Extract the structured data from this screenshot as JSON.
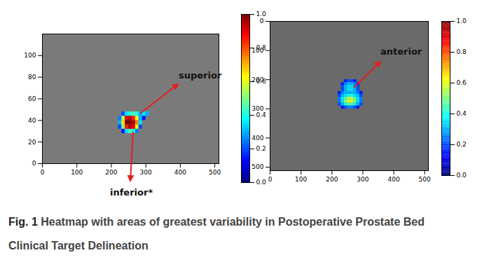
{
  "chart_data": [
    {
      "type": "heatmap",
      "xlim": [
        0,
        512
      ],
      "xticks": [
        0,
        100,
        200,
        300,
        400,
        500
      ],
      "ylim": [
        0,
        120
      ],
      "yticks": [
        0,
        20,
        40,
        60,
        80,
        100
      ],
      "annotations": [
        "superior",
        "inferior*"
      ],
      "cells": {
        "x_edges": [
          220,
          230,
          240,
          250,
          260,
          270,
          280,
          290,
          300,
          310
        ],
        "y_edges": [
          28,
          32,
          36,
          40,
          44,
          48
        ],
        "values": [
          [
            null,
            0.15,
            0.35,
            0.45,
            0.4,
            0.25,
            null,
            null,
            null
          ],
          [
            0.2,
            0.5,
            0.85,
            0.95,
            0.9,
            0.6,
            0.2,
            null,
            null
          ],
          [
            0.3,
            0.65,
            1.0,
            1.0,
            0.95,
            0.75,
            0.35,
            null,
            null
          ],
          [
            0.25,
            0.55,
            0.9,
            0.95,
            0.85,
            0.6,
            0.3,
            0.15,
            null
          ],
          [
            null,
            0.2,
            0.35,
            0.4,
            0.45,
            0.4,
            0.3,
            0.35,
            0.3
          ]
        ]
      },
      "colorbar": {
        "lim": [
          0,
          1
        ],
        "ticks": [
          {
            "value": 0,
            "label": "0.0"
          },
          {
            "value": 0.2,
            "label": "0.2"
          },
          {
            "value": 0.4,
            "label": "0.4"
          },
          {
            "value": 0.6,
            "label": "0.6"
          },
          {
            "value": 0.8,
            "label": "0.8"
          },
          {
            "value": 1,
            "label": "1.0"
          }
        ]
      }
    },
    {
      "type": "heatmap",
      "xlim": [
        0,
        512
      ],
      "xticks": [
        0,
        100,
        200,
        300,
        400,
        500
      ],
      "ylim": [
        512,
        0
      ],
      "yticks": [
        0,
        100,
        200,
        300,
        400,
        500
      ],
      "annotations": [
        "anterior"
      ],
      "cells": {
        "x_edges": [
          220,
          230,
          240,
          250,
          260,
          270,
          280,
          290,
          300
        ],
        "y_edges": [
          200,
          210,
          220,
          230,
          240,
          250,
          260,
          270,
          280,
          290,
          300
        ],
        "values": [
          [
            null,
            null,
            0.15,
            0.2,
            0.2,
            0.15,
            null,
            null
          ],
          [
            null,
            0.15,
            0.25,
            0.3,
            0.3,
            0.25,
            0.15,
            null
          ],
          [
            null,
            0.2,
            0.3,
            0.35,
            0.35,
            0.3,
            0.2,
            null
          ],
          [
            null,
            0.2,
            0.3,
            0.35,
            0.35,
            0.3,
            0.2,
            null
          ],
          [
            0.15,
            0.25,
            0.3,
            0.3,
            0.3,
            0.3,
            0.25,
            0.15
          ],
          [
            0.2,
            0.3,
            0.35,
            0.4,
            0.4,
            0.35,
            0.3,
            0.2
          ],
          [
            0.25,
            0.35,
            0.45,
            0.55,
            0.55,
            0.45,
            0.35,
            0.25
          ],
          [
            0.25,
            0.35,
            0.5,
            0.6,
            0.6,
            0.5,
            0.35,
            0.25
          ],
          [
            0.2,
            0.3,
            0.4,
            0.45,
            0.45,
            0.4,
            0.3,
            0.2
          ],
          [
            null,
            0.15,
            0.2,
            0.25,
            0.25,
            0.2,
            0.15,
            null
          ]
        ]
      },
      "colorbar": {
        "lim": [
          0,
          1
        ],
        "ticks": [
          {
            "value": 0,
            "label": "0.0"
          },
          {
            "value": 0.2,
            "label": "0.2"
          },
          {
            "value": 0.4,
            "label": "0.4"
          },
          {
            "value": 0.6,
            "label": "0.6"
          },
          {
            "value": 0.8,
            "label": "0.8"
          },
          {
            "value": 1,
            "label": "1.0"
          }
        ]
      }
    }
  ],
  "caption": {
    "label": "Fig. 1",
    "text": "Heatmap with areas of greatest variability in Postoperative Prostate Bed Clinical Target Delineation"
  }
}
